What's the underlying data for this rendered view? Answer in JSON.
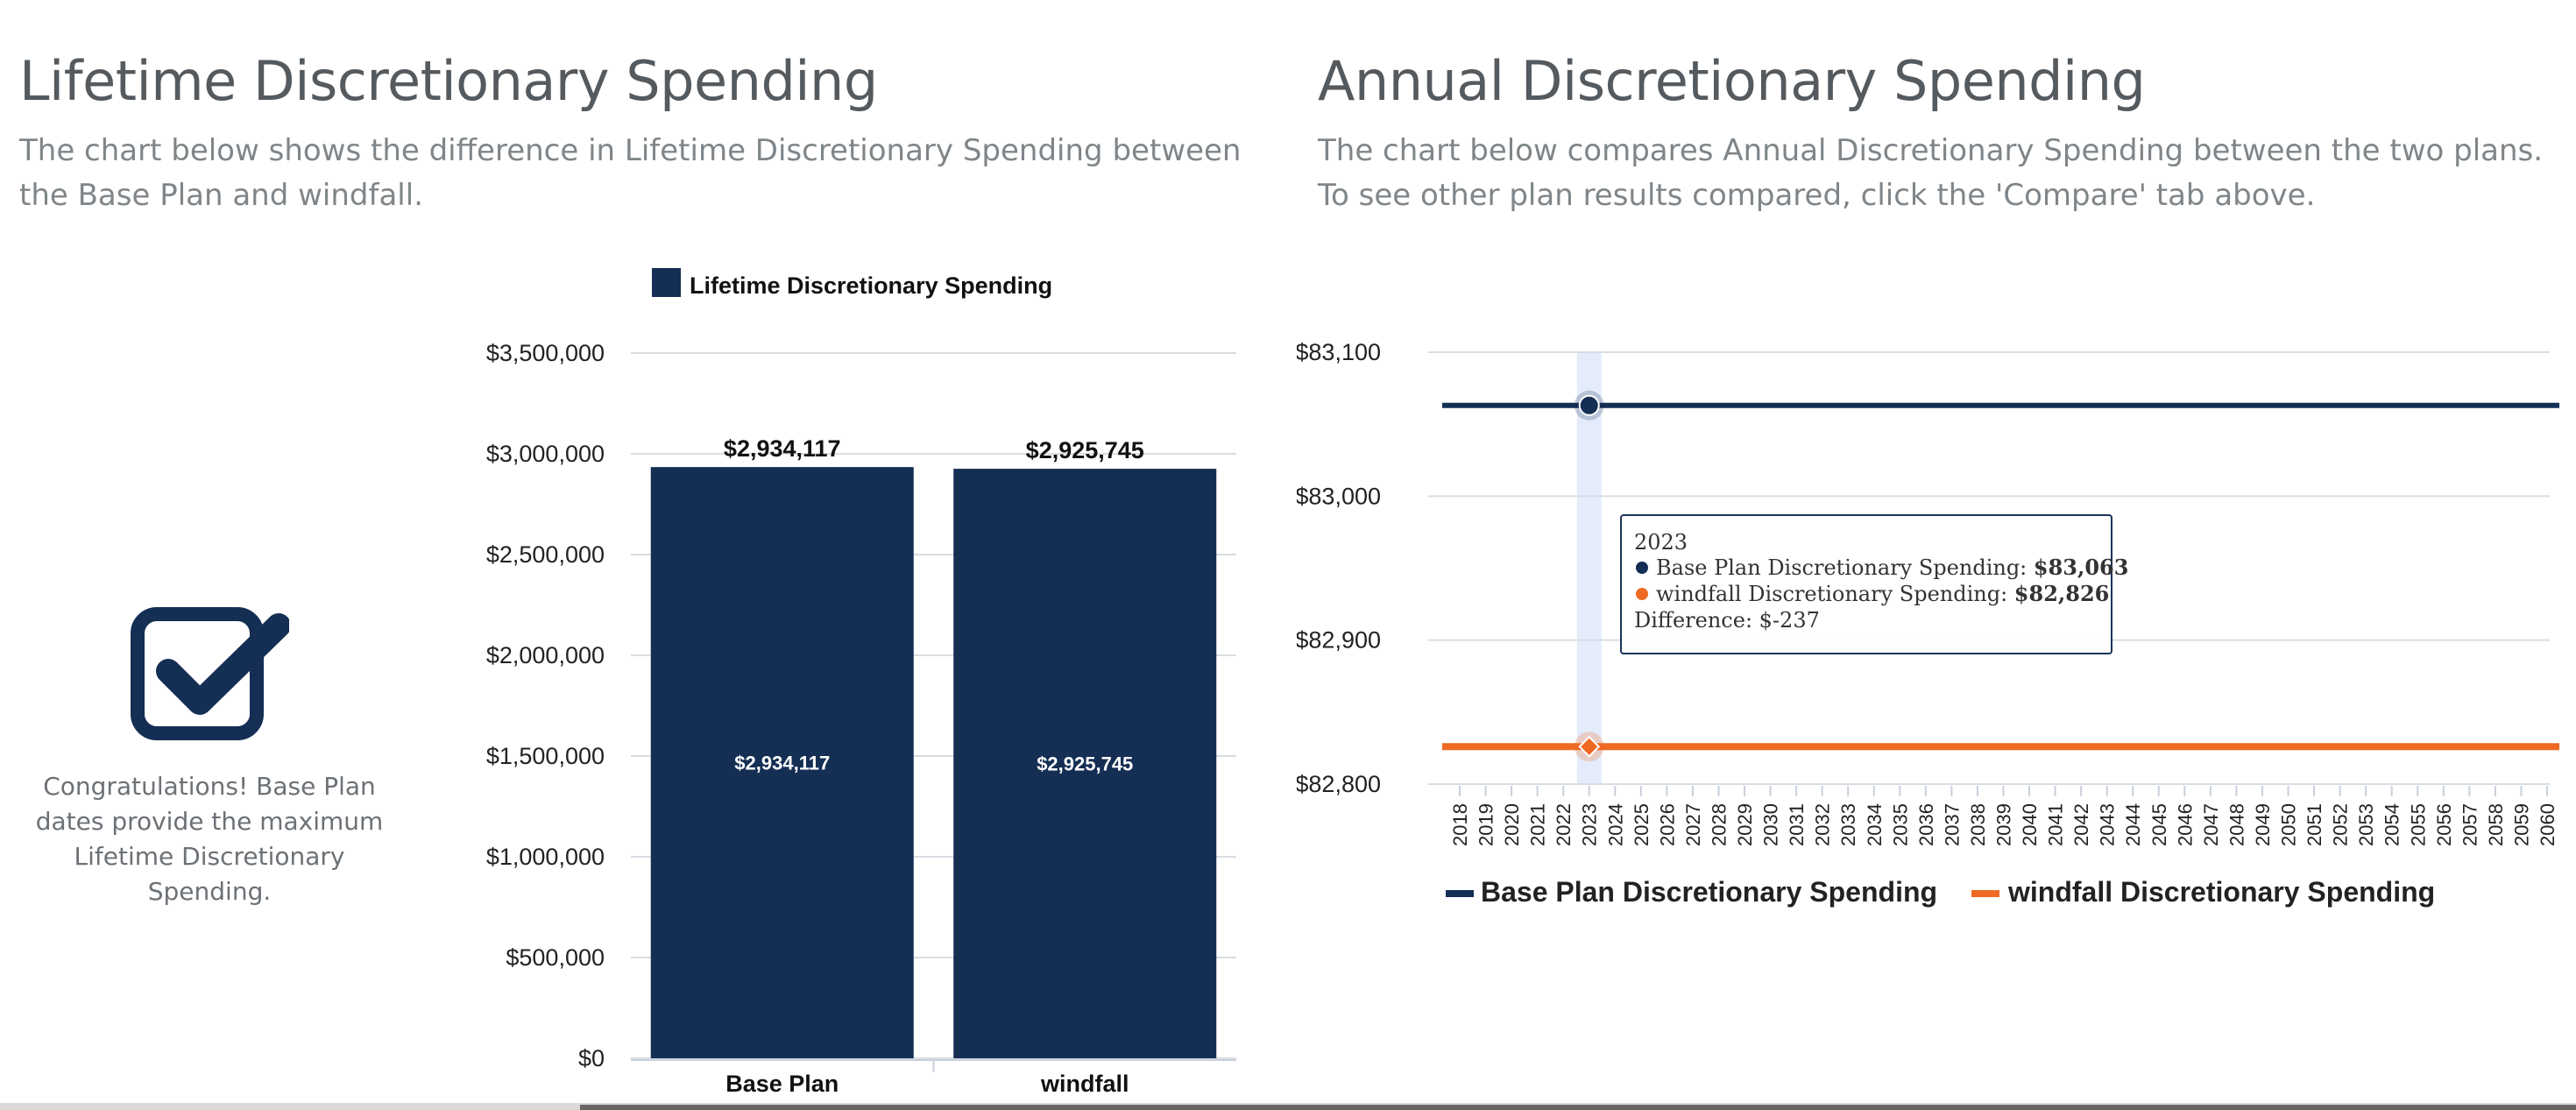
{
  "left": {
    "title": "Lifetime Discretionary Spending",
    "description": "The chart below shows the difference in Lifetime Discretionary Spending between the Base Plan and windfall.",
    "congrats": "Congratulations! Base Plan dates provide the maximum Lifetime Discretionary Spending.",
    "check_icon": "checkbox-checked-icon"
  },
  "right": {
    "title": "Annual Discretionary Spending",
    "description": "The chart below compares Annual Discretionary Spending between the two plans. To see other plan results compared, click the 'Compare' tab above."
  },
  "colors": {
    "navy": "#142e54",
    "orange": "#ee6a24",
    "grid": "#d9dde3",
    "crosshair": "#e4ecfb"
  },
  "chart_data": [
    {
      "type": "bar",
      "title": "",
      "legend": [
        "Lifetime Discretionary Spending"
      ],
      "legend_placement": "top-center",
      "categories": [
        "Base Plan",
        "windfall"
      ],
      "values": [
        2934117,
        2925745
      ],
      "top_labels": [
        "$2,934,117",
        "$2,925,745"
      ],
      "inner_labels": [
        "$2,934,117",
        "$2,925,745"
      ],
      "yticks": [
        0,
        500000,
        1000000,
        1500000,
        2000000,
        2500000,
        3000000,
        3500000
      ],
      "ytick_labels": [
        "$0",
        "$500,000",
        "$1,000,000",
        "$1,500,000",
        "$2,000,000",
        "$2,500,000",
        "$3,000,000",
        "$3,500,000"
      ],
      "ylim": [
        0,
        3500000
      ],
      "xlabel": "",
      "ylabel": ""
    },
    {
      "type": "line",
      "title": "",
      "x": [
        2018,
        2019,
        2020,
        2021,
        2022,
        2023,
        2024,
        2025,
        2026,
        2027,
        2028,
        2029,
        2030,
        2031,
        2032,
        2033,
        2034,
        2035,
        2036,
        2037,
        2038,
        2039,
        2040,
        2041,
        2042,
        2043,
        2044,
        2045,
        2046,
        2047,
        2048,
        2049,
        2050,
        2051,
        2052,
        2053,
        2054,
        2055,
        2056,
        2057,
        2058,
        2059,
        2060
      ],
      "series": [
        {
          "name": "Base Plan Discretionary Spending",
          "constant_value": 83063
        },
        {
          "name": "windfall Discretionary Spending",
          "constant_value": 82826
        }
      ],
      "legend_placement": "bottom-left",
      "yticks": [
        82800,
        82900,
        83000,
        83100
      ],
      "ytick_labels": [
        "$82,800",
        "$82,900",
        "$83,000",
        "$83,100"
      ],
      "ylim": [
        82800,
        83100
      ],
      "tooltip": {
        "year": "2023",
        "line1": "Base Plan Discretionary Spending: ",
        "line1_value": "$83,063",
        "line2": "windfall Discretionary Spending: ",
        "line2_value": "$82,826",
        "diff": "Difference: $-237"
      }
    }
  ]
}
